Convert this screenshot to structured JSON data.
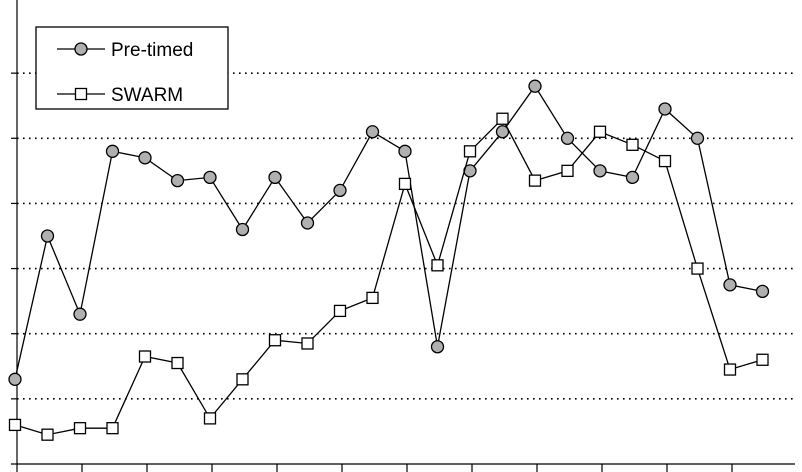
{
  "chart_data": {
    "type": "line",
    "title": "",
    "xlabel": "",
    "ylabel": "",
    "x": [
      1,
      2,
      3,
      4,
      5,
      6,
      7,
      8,
      9,
      10,
      11,
      12,
      13,
      14,
      15,
      16,
      17,
      18,
      19,
      20,
      21,
      22,
      23,
      24
    ],
    "ylim": [
      0,
      7
    ],
    "grid": "horizontal-dotted",
    "legend_position": "top-left",
    "series": [
      {
        "name": "Pre-timed",
        "marker": "circle",
        "color": "#000000",
        "marker_fill": "#b0b0b0",
        "values": [
          1.3,
          3.5,
          2.3,
          4.8,
          4.7,
          4.35,
          4.4,
          3.6,
          4.4,
          3.7,
          4.2,
          5.1,
          4.8,
          1.8,
          4.5,
          5.1,
          5.8,
          5.0,
          4.5,
          4.4,
          5.45,
          5.0,
          2.75,
          2.65
        ]
      },
      {
        "name": "SWARM",
        "marker": "square",
        "color": "#000000",
        "marker_fill": "#ffffff",
        "values": [
          0.6,
          0.45,
          0.55,
          0.55,
          1.65,
          1.55,
          0.7,
          1.3,
          1.9,
          1.85,
          2.35,
          2.55,
          4.3,
          3.05,
          4.8,
          5.3,
          4.35,
          4.5,
          5.1,
          4.9,
          4.65,
          3.0,
          1.45,
          1.6
        ]
      }
    ]
  }
}
